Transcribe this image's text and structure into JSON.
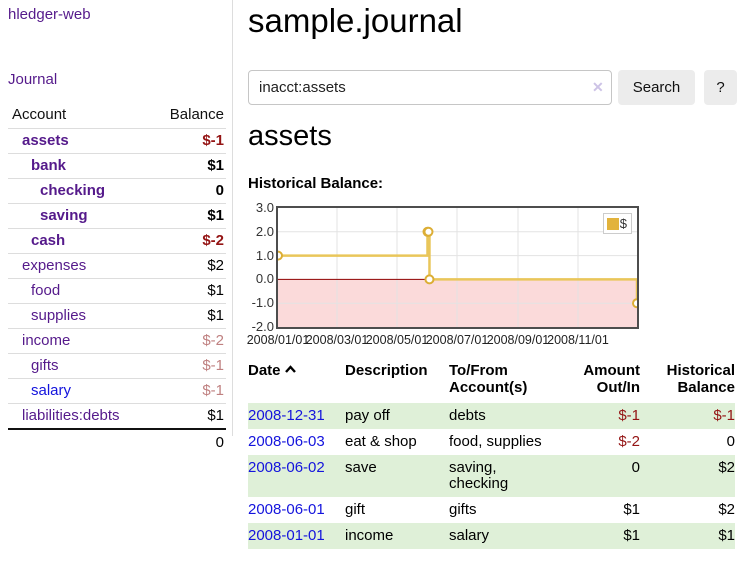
{
  "app": {
    "title": "hledger-web"
  },
  "sidebar": {
    "nav": {
      "journal": "Journal"
    },
    "accounts_header": {
      "account": "Account",
      "balance": "Balance"
    },
    "accounts": [
      {
        "name": "assets",
        "depth": 1,
        "bold": true,
        "link_style": "visited",
        "balance": "$-1",
        "balance_style": "negstrong"
      },
      {
        "name": "bank",
        "depth": 2,
        "bold": true,
        "link_style": "visited",
        "balance": "$1",
        "balance_style": "normal"
      },
      {
        "name": "checking",
        "depth": 3,
        "bold": true,
        "link_style": "visited",
        "balance": "0",
        "balance_style": "normal"
      },
      {
        "name": "saving",
        "depth": 3,
        "bold": true,
        "link_style": "visited",
        "balance": "$1",
        "balance_style": "normal"
      },
      {
        "name": "cash",
        "depth": 2,
        "bold": true,
        "link_style": "visited",
        "balance": "$-2",
        "balance_style": "negstrong"
      },
      {
        "name": "expenses",
        "depth": 1,
        "bold": false,
        "link_style": "visited",
        "balance": "$2",
        "balance_style": "normal"
      },
      {
        "name": "food",
        "depth": 2,
        "bold": false,
        "link_style": "visited",
        "balance": "$1",
        "balance_style": "normal"
      },
      {
        "name": "supplies",
        "depth": 2,
        "bold": false,
        "link_style": "visited",
        "balance": "$1",
        "balance_style": "normal"
      },
      {
        "name": "income",
        "depth": 1,
        "bold": false,
        "link_style": "visited",
        "balance": "$-2",
        "balance_style": "negsoft"
      },
      {
        "name": "gifts",
        "depth": 2,
        "bold": false,
        "link_style": "visited",
        "balance": "$-1",
        "balance_style": "negsoft"
      },
      {
        "name": "salary",
        "depth": 2,
        "bold": false,
        "link_style": "unvisited",
        "balance": "$-1",
        "balance_style": "negsoft"
      },
      {
        "name": "liabilities:debts",
        "depth": 1,
        "bold": false,
        "link_style": "visited",
        "balance": "$1",
        "balance_style": "normal"
      }
    ],
    "total": "0"
  },
  "header": {
    "title": "sample.journal"
  },
  "search": {
    "value": "inacct:assets",
    "clear_icon": "✕",
    "button": "Search",
    "help_button": "?"
  },
  "account_page": {
    "heading": "assets",
    "chart_label": "Historical Balance:"
  },
  "chart_data": {
    "type": "line",
    "title": "Historical Balance",
    "step": true,
    "legend": [
      {
        "label": "$",
        "color": "#e2b33c"
      }
    ],
    "legend_position": "top-right",
    "series": [
      {
        "name": "$",
        "points": [
          {
            "date": "2008-01-01",
            "value": 1
          },
          {
            "date": "2008-06-01",
            "value": 2
          },
          {
            "date": "2008-06-02",
            "value": 2
          },
          {
            "date": "2008-06-03",
            "value": 0
          },
          {
            "date": "2008-12-31",
            "value": -1
          }
        ]
      }
    ],
    "xlim": [
      "2008-01-01",
      "2008-12-31"
    ],
    "ylim": [
      -2,
      3
    ],
    "yticks": [
      "3.0",
      "2.0",
      "1.0",
      "0.0",
      "-1.0",
      "-2.0"
    ],
    "xticks": [
      "2008/01/01",
      "2008/03/01",
      "2008/05/01",
      "2008/07/01",
      "2008/09/01",
      "2008/11/01"
    ],
    "grid": true,
    "line_color": "#e9c65a",
    "marker_color": "#dcae35",
    "negative_region_color": "#fbdada",
    "zero_line_color": "#8e0000"
  },
  "register": {
    "columns": {
      "date": "Date",
      "description": "Description",
      "account": "To/From Account(s)",
      "amount": "Amount Out/In",
      "balance": "Historical Balance"
    },
    "sort": {
      "column": "date",
      "direction": "ascending"
    },
    "rows": [
      {
        "date": "2008-12-31",
        "description": "pay off",
        "accounts": "debts",
        "amount": "$-1",
        "amount_neg": true,
        "balance": "$-1",
        "balance_neg": true,
        "shaded": true
      },
      {
        "date": "2008-06-03",
        "description": "eat & shop",
        "accounts": "food, supplies",
        "amount": "$-2",
        "amount_neg": true,
        "balance": "0",
        "balance_neg": false,
        "shaded": false
      },
      {
        "date": "2008-06-02",
        "description": "save",
        "accounts": "saving, checking",
        "amount": "0",
        "amount_neg": false,
        "balance": "$2",
        "balance_neg": false,
        "shaded": true
      },
      {
        "date": "2008-06-01",
        "description": "gift",
        "accounts": "gifts",
        "amount": "$1",
        "amount_neg": false,
        "balance": "$2",
        "balance_neg": false,
        "shaded": false
      },
      {
        "date": "2008-01-01",
        "description": "income",
        "accounts": "salary",
        "amount": "$1",
        "amount_neg": false,
        "balance": "$1",
        "balance_neg": false,
        "shaded": true
      }
    ]
  }
}
